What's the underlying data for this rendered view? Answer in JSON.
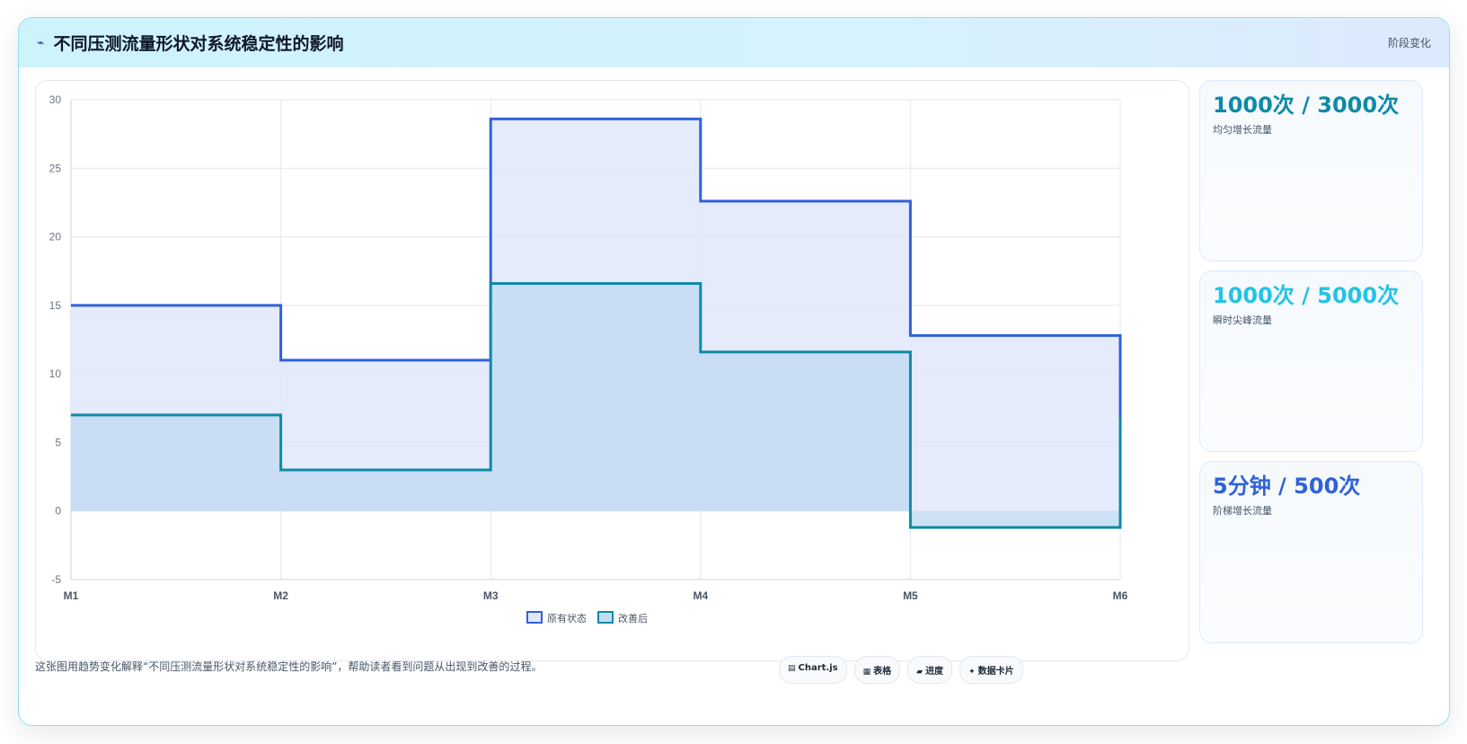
{
  "header": {
    "title_icon": "trend-icon",
    "title": "不同压测流量形状对系统稳定性的影响",
    "tag": "阶段变化"
  },
  "chart_data": {
    "type": "line",
    "step": true,
    "fill": true,
    "categories": [
      "M1",
      "M2",
      "M3",
      "M4",
      "M5",
      "M6"
    ],
    "ylim": [
      -5,
      30
    ],
    "yticks": [
      30,
      25,
      20,
      15,
      10,
      5,
      0,
      -5
    ],
    "grid": true,
    "legend_position": "bottom",
    "series": [
      {
        "name": "原有状态",
        "values": [
          15,
          11,
          28.6,
          22.6,
          12.8,
          6.8
        ],
        "color": "#2f62d8",
        "fill": "#e0e8fa"
      },
      {
        "name": "改善后",
        "values": [
          7,
          3,
          16.6,
          11.6,
          -1.2,
          6.8
        ],
        "color": "#0e8aa8",
        "fill": "#c4dcf2"
      }
    ]
  },
  "side_cards": [
    {
      "value": "1000次 / 3000次",
      "label": "均匀增长流量",
      "color": "#0e8aa8"
    },
    {
      "value": "1000次 / 5000次",
      "label": "瞬时尖峰流量",
      "color": "#22c3e6"
    },
    {
      "value": "5分钟 / 500次",
      "label": "阶梯增长流量",
      "color": "#2f62d8"
    }
  ],
  "footer": {
    "text": "这张图用趋势变化解释“不同压测流量形状对系统稳定性的影响”，帮助读者看到问题从出现到改善的过程。",
    "pills": [
      {
        "icon": "chart-icon",
        "glyph": "▤",
        "label": "Chart.js"
      },
      {
        "icon": "table-icon",
        "glyph": "▦",
        "label": "表格"
      },
      {
        "icon": "progress-icon",
        "glyph": "▰",
        "label": "进度"
      },
      {
        "icon": "sparkle-icon",
        "glyph": "✦",
        "label": "数据卡片"
      }
    ]
  }
}
